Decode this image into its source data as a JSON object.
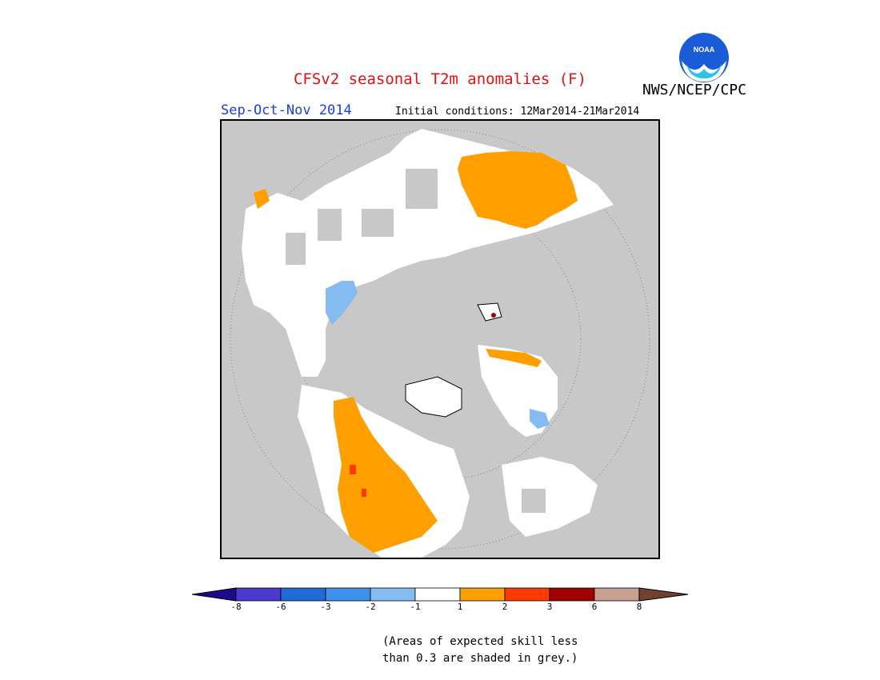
{
  "title": "CFSv2 seasonal T2m anomalies (F)",
  "agency": "NWS/NCEP/CPC",
  "logo": {
    "text": "NOAA",
    "icon": "noaa-logo-icon",
    "color_bg": "#1a5bd8"
  },
  "season": "Sep-Oct-Nov 2014",
  "initial_conditions": "Initial conditions: 12Mar2014-21Mar2014",
  "colorbar": {
    "colors": [
      "#1b0a8c",
      "#4a3ad0",
      "#1f6bd6",
      "#3f92ea",
      "#84bcf2",
      "#ffffff",
      "#ffa000",
      "#ff3a00",
      "#a00000",
      "#c8a090",
      "#704030"
    ],
    "tick_labels": [
      "-8",
      "-6",
      "-3",
      "-2",
      "-1",
      "1",
      "2",
      "3",
      "6",
      "8"
    ]
  },
  "note_lines": [
    "(Areas of expected skill less",
    "than 0.3 are shaded in grey.)"
  ],
  "colors": {
    "grey": "#c8c8c8",
    "land_white": "#ffffff",
    "orange": "#ffa000",
    "light_blue": "#84bcf2",
    "red": "#ff3a00",
    "dark_red": "#a00000"
  }
}
